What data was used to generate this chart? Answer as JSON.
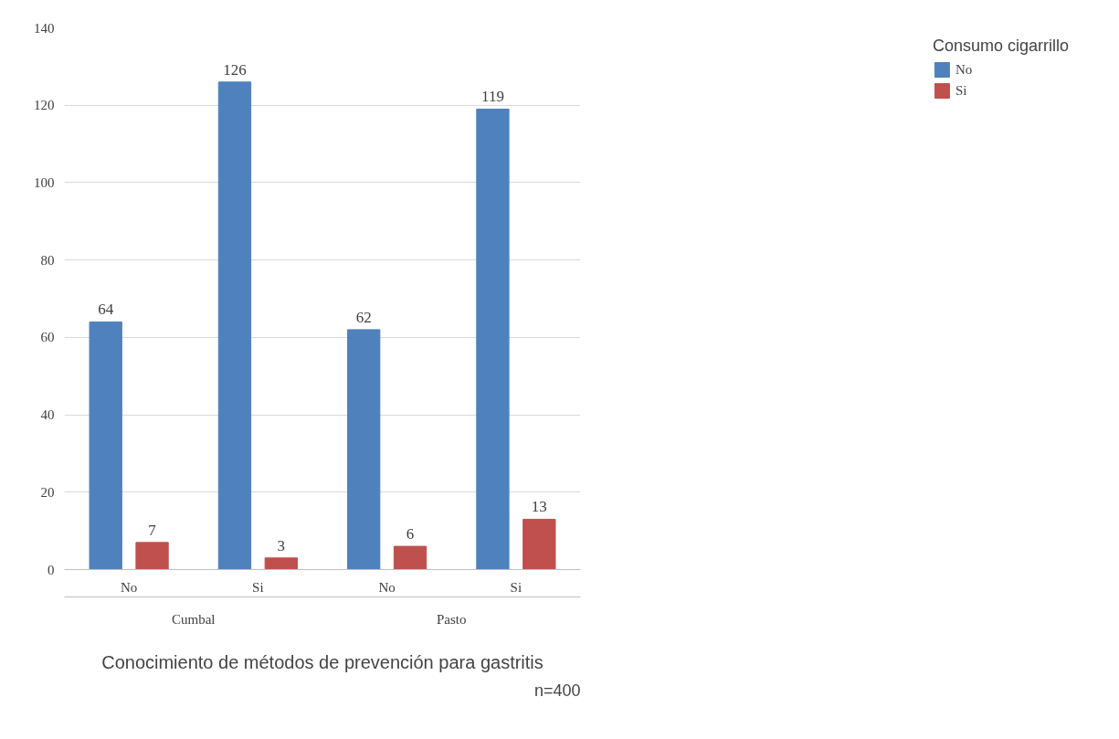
{
  "chart_data": {
    "type": "bar",
    "xlabel": "Conocimiento de métodos de prevención para gastritis",
    "legend_title": "Consumo cigarrillo",
    "categories": [
      "No",
      "Si",
      "No",
      "Si"
    ],
    "series": [
      {
        "name": "No",
        "color": "#4f81bd",
        "values": [
          64,
          126,
          62,
          119
        ]
      },
      {
        "name": "Si",
        "color": "#c0504d",
        "values": [
          7,
          3,
          6,
          13
        ]
      }
    ],
    "ylim": [
      0,
      140
    ],
    "yticks": [
      0,
      20,
      40,
      60,
      80,
      100,
      120,
      140
    ],
    "grid": "y",
    "legend": "right",
    "data_labels": true,
    "annotations": [
      "Cumbal",
      "Pasto",
      "n=400"
    ]
  }
}
